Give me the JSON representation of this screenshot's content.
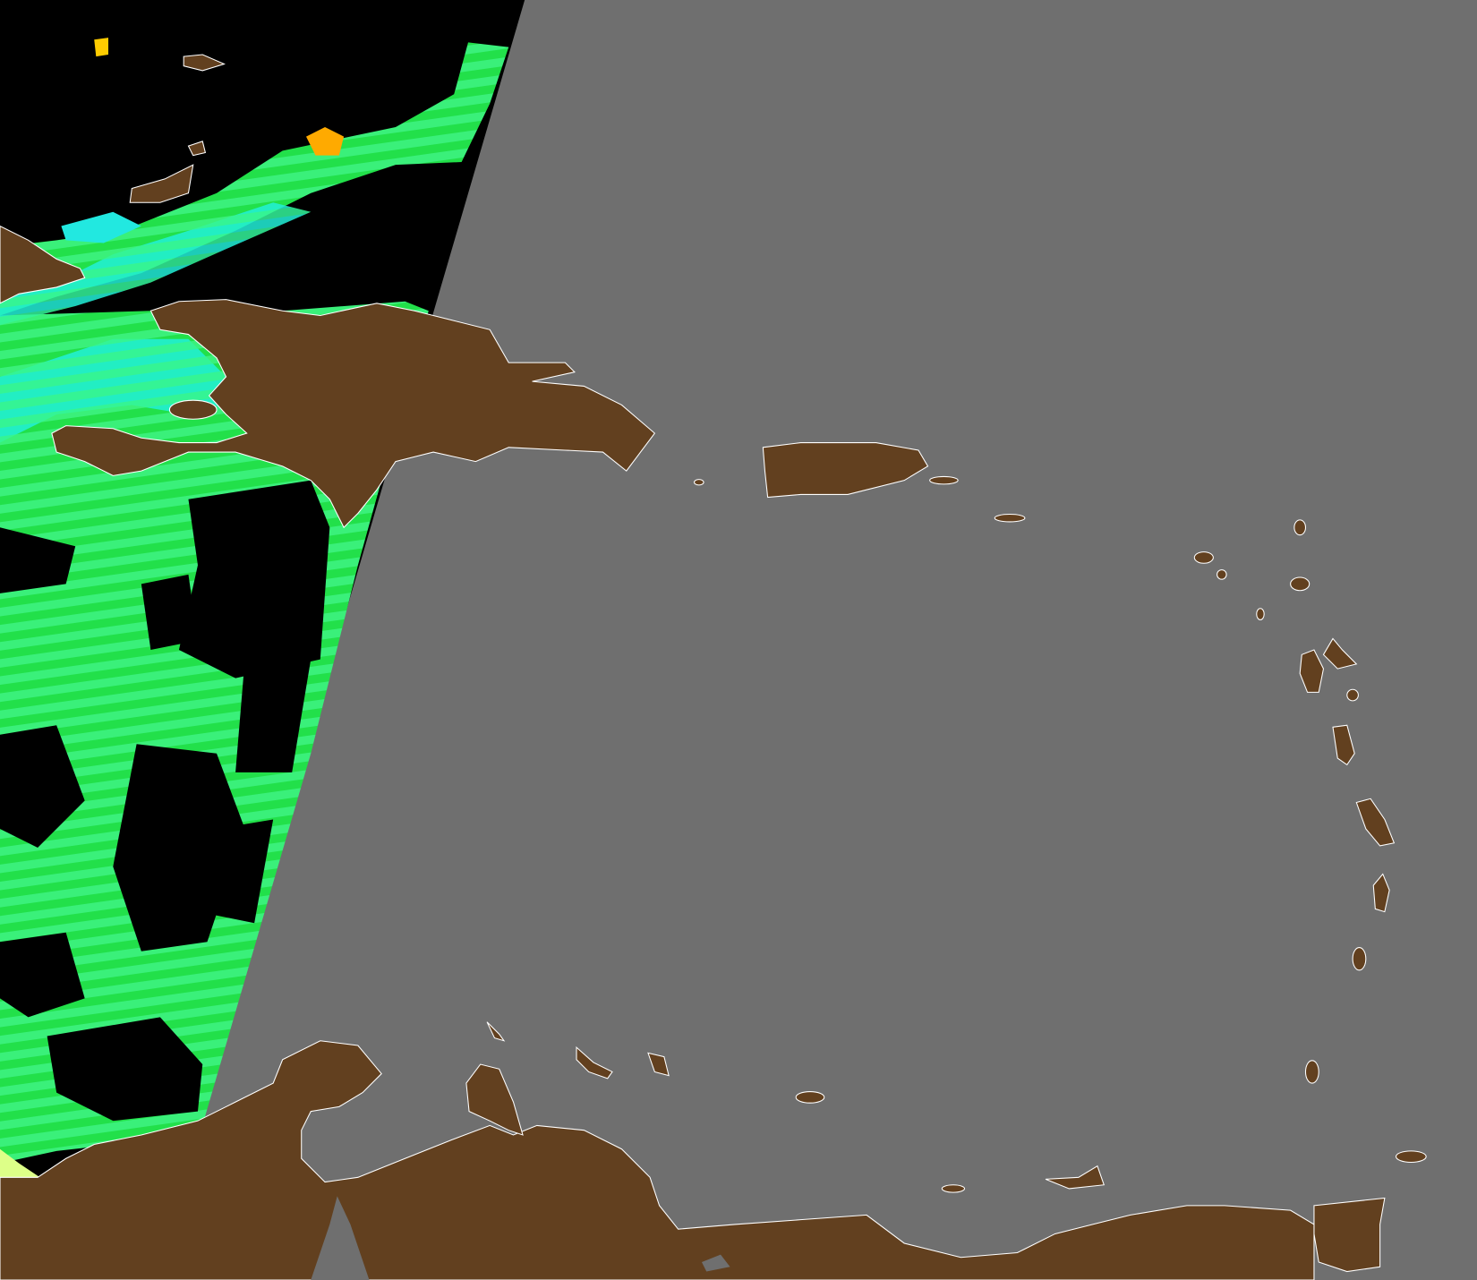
{
  "map": {
    "colors": {
      "no_data": "#6f6f6f",
      "cloud_mask": "#000000",
      "land": "#62401f",
      "coastline": "#ffffff",
      "data_low": "#22dd44",
      "data_mid": "#33ee88",
      "data_cyan": "#22eedd",
      "data_high": "#ffaa00",
      "data_yellow": "#ddff88"
    }
  }
}
